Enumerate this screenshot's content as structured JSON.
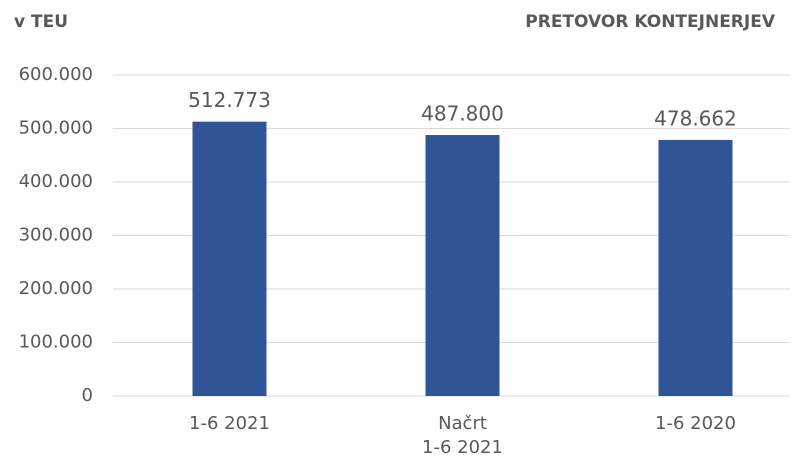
{
  "chart_data": {
    "type": "bar",
    "title": "PRETOVOR KONTEJNERJEV",
    "ylabel": "v TEU",
    "categories": [
      "1-6 2021",
      "Načrt\n1-6 2021",
      "1-6 2020"
    ],
    "values": [
      512773,
      487800,
      478662
    ],
    "value_labels": [
      "512.773",
      "487.800",
      "478.662"
    ],
    "color": "#2f5597",
    "ylim": [
      0,
      600000
    ],
    "yticks": [
      0,
      {
        "value": 100000,
        "label": "100.000"
      },
      {
        "value": 200000,
        "label": "200.000"
      },
      {
        "value": 300000,
        "label": "300.000"
      },
      {
        "value": 400000,
        "label": "400.000"
      },
      {
        "value": 500000,
        "label": "500.000"
      },
      {
        "value": 600000,
        "label": "600.000"
      }
    ],
    "grid": true
  }
}
